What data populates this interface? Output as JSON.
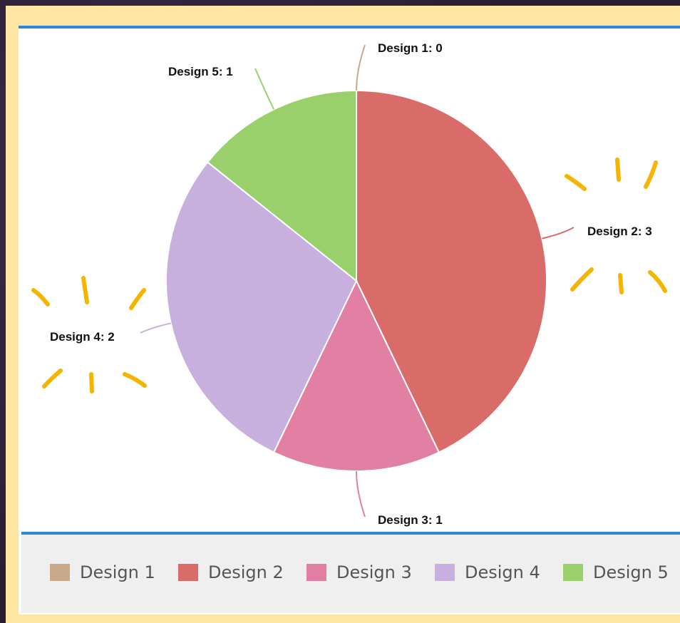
{
  "chart_data": {
    "type": "pie",
    "categories": [
      "Design 1",
      "Design 2",
      "Design 3",
      "Design 4",
      "Design 5"
    ],
    "values": [
      0,
      3,
      1,
      2,
      1
    ],
    "colors": [
      "#c8a98a",
      "#d96b69",
      "#e280a3",
      "#c7b0dd",
      "#99d06c"
    ],
    "data_labels": [
      "Design 1: 0",
      "Design 2: 3",
      "Design 3: 1",
      "Design 4: 2",
      "Design 5: 1"
    ],
    "legend_position": "bottom"
  },
  "legend": {
    "items": [
      {
        "label": "Design 1",
        "color": "#c8a98a"
      },
      {
        "label": "Design 2",
        "color": "#d96b69"
      },
      {
        "label": "Design 3",
        "color": "#e280a3"
      },
      {
        "label": "Design 4",
        "color": "#c7b0dd"
      },
      {
        "label": "Design 5",
        "color": "#99d06c"
      }
    ]
  },
  "annotations": {
    "highlight_color": "#f5b400"
  }
}
